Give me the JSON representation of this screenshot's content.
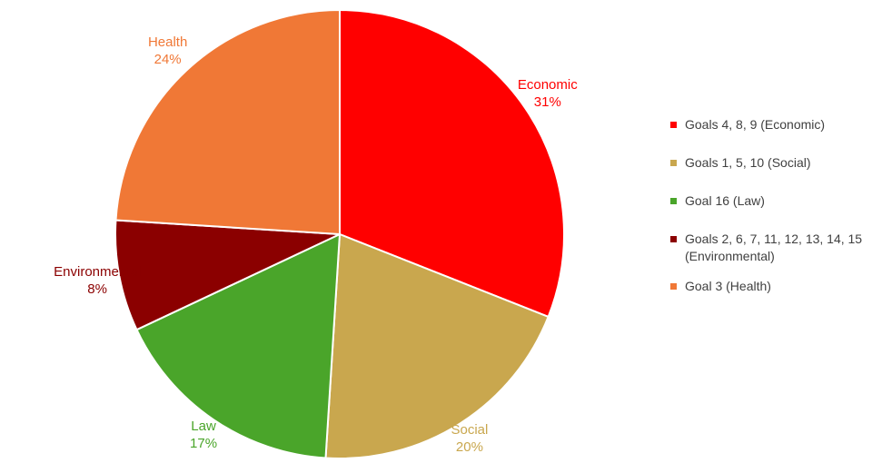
{
  "chart_data": {
    "type": "pie",
    "title": "",
    "slices": [
      {
        "key": "economic",
        "label": "Economic",
        "percent_label": "31%",
        "value": 31,
        "color": "#ff0000",
        "label_color": "#ff0000",
        "legend": "Goals 4, 8, 9 (Economic)"
      },
      {
        "key": "social",
        "label": "Social",
        "percent_label": "20%",
        "value": 20,
        "color": "#c9a74e",
        "label_color": "#c9a74e",
        "legend": "Goals 1, 5, 10 (Social)"
      },
      {
        "key": "law",
        "label": "Law",
        "percent_label": "17%",
        "value": 17,
        "color": "#4aa52a",
        "label_color": "#4aa52a",
        "legend": "Goal 16 (Law)"
      },
      {
        "key": "environmental",
        "label": "Environmental",
        "percent_label": "8%",
        "value": 8,
        "color": "#8b0000",
        "label_color": "#8b0000",
        "legend": "Goals 2, 6, 7, 11, 12, 13, 14, 15 (Environmental)"
      },
      {
        "key": "health",
        "label": "Health",
        "percent_label": "24%",
        "value": 24,
        "color": "#f07836",
        "label_color": "#f07836",
        "legend": "Goal 3 (Health)"
      }
    ],
    "legend_position": "right"
  }
}
